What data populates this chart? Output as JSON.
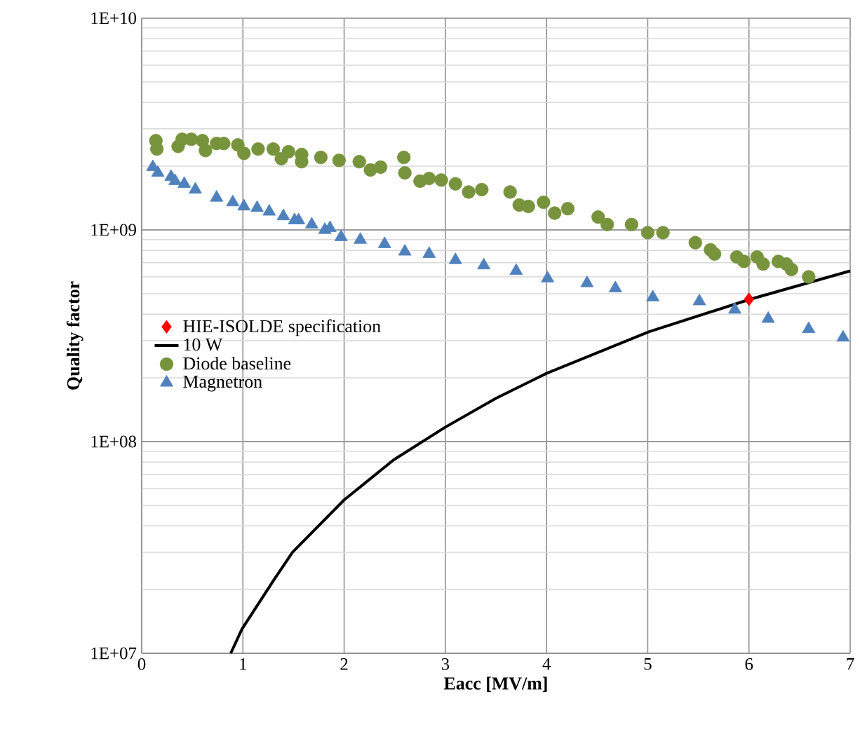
{
  "chart_data": {
    "type": "scatter",
    "xlabel": "Eacc [MV/m]",
    "ylabel": "Quality factor",
    "xlim": [
      0,
      7
    ],
    "xticks": [
      0,
      1,
      2,
      3,
      4,
      5,
      6,
      7
    ],
    "ylim": [
      10000000.0,
      10000000000.0
    ],
    "yticks": [
      {
        "value": 10000000.0,
        "label": "1E+07"
      },
      {
        "value": 100000000.0,
        "label": "1E+08"
      },
      {
        "value": 1000000000.0,
        "label": "1E+09"
      },
      {
        "value": 10000000000.0,
        "label": "1E+10"
      }
    ],
    "log": "y",
    "grid": true,
    "legend": "left",
    "series": [
      {
        "name": "HIE-ISOLDE specification",
        "marker": "diamond",
        "color": "#ff0000",
        "x": [
          6.0
        ],
        "values": [
          470000000.0
        ]
      },
      {
        "name": "10 W",
        "type": "line",
        "marker": "none",
        "color": "#000000",
        "x": [
          0.88,
          0.99,
          1.3,
          1.49,
          2.0,
          2.49,
          3.0,
          3.5,
          4.0,
          5.01,
          6.01,
          7.0
        ],
        "values": [
          10000000.0,
          13000000.0,
          22000000.0,
          30000000.0,
          53000000.0,
          82000000.0,
          117000000.0,
          160000000.0,
          210000000.0,
          330000000.0,
          470000000.0,
          640000000.0
        ]
      },
      {
        "name": "Diode baseline",
        "marker": "circle",
        "color": "#77933c",
        "x": [
          0.14,
          0.15,
          0.36,
          0.4,
          0.49,
          0.6,
          0.63,
          0.74,
          0.81,
          0.95,
          1.01,
          1.15,
          1.3,
          1.38,
          1.45,
          1.58,
          1.58,
          1.77,
          1.95,
          2.15,
          2.26,
          2.36,
          2.59,
          2.6,
          2.75,
          2.84,
          2.96,
          3.1,
          3.23,
          3.36,
          3.64,
          3.73,
          3.82,
          3.97,
          4.08,
          4.21,
          4.51,
          4.6,
          4.84,
          5.0,
          5.15,
          5.47,
          5.62,
          5.66,
          5.88,
          5.95,
          6.08,
          6.14,
          6.29,
          6.37,
          6.42,
          6.59
        ],
        "values": [
          2640000000.0,
          2410000000.0,
          2480000000.0,
          2680000000.0,
          2680000000.0,
          2640000000.0,
          2370000000.0,
          2560000000.0,
          2560000000.0,
          2520000000.0,
          2300000000.0,
          2410000000.0,
          2410000000.0,
          2170000000.0,
          2340000000.0,
          2270000000.0,
          2100000000.0,
          2200000000.0,
          2130000000.0,
          2100000000.0,
          1920000000.0,
          1980000000.0,
          2200000000.0,
          1860000000.0,
          1700000000.0,
          1750000000.0,
          1720000000.0,
          1650000000.0,
          1510000000.0,
          1550000000.0,
          1510000000.0,
          1310000000.0,
          1290000000.0,
          1350000000.0,
          1200000000.0,
          1260000000.0,
          1150000000.0,
          1060000000.0,
          1060000000.0,
          970000000.0,
          970000000.0,
          870000000.0,
          805000000.0,
          770000000.0,
          745000000.0,
          710000000.0,
          745000000.0,
          690000000.0,
          710000000.0,
          690000000.0,
          650000000.0,
          600000000.0
        ]
      },
      {
        "name": "Magnetron",
        "marker": "triangle",
        "color": "#4f81bd",
        "x": [
          0.11,
          0.16,
          0.29,
          0.33,
          0.42,
          0.53,
          0.74,
          0.9,
          1.01,
          1.14,
          1.26,
          1.4,
          1.51,
          1.55,
          1.68,
          1.81,
          1.86,
          1.97,
          2.16,
          2.4,
          2.6,
          2.84,
          3.1,
          3.38,
          3.7,
          4.01,
          4.4,
          4.68,
          5.05,
          5.51,
          5.86,
          6.19,
          6.59,
          6.93
        ],
        "values": [
          1980000000.0,
          1860000000.0,
          1780000000.0,
          1700000000.0,
          1650000000.0,
          1550000000.0,
          1420000000.0,
          1350000000.0,
          1290000000.0,
          1270000000.0,
          1220000000.0,
          1160000000.0,
          1110000000.0,
          1110000000.0,
          1060000000.0,
          1000000000.0,
          1020000000.0,
          925000000.0,
          898000000.0,
          857000000.0,
          790000000.0,
          770000000.0,
          720000000.0,
          680000000.0,
          640000000.0,
          590000000.0,
          560000000.0,
          530000000.0,
          480000000.0,
          460000000.0,
          420000000.0,
          380000000.0,
          340000000.0,
          310000000.0
        ]
      }
    ]
  }
}
